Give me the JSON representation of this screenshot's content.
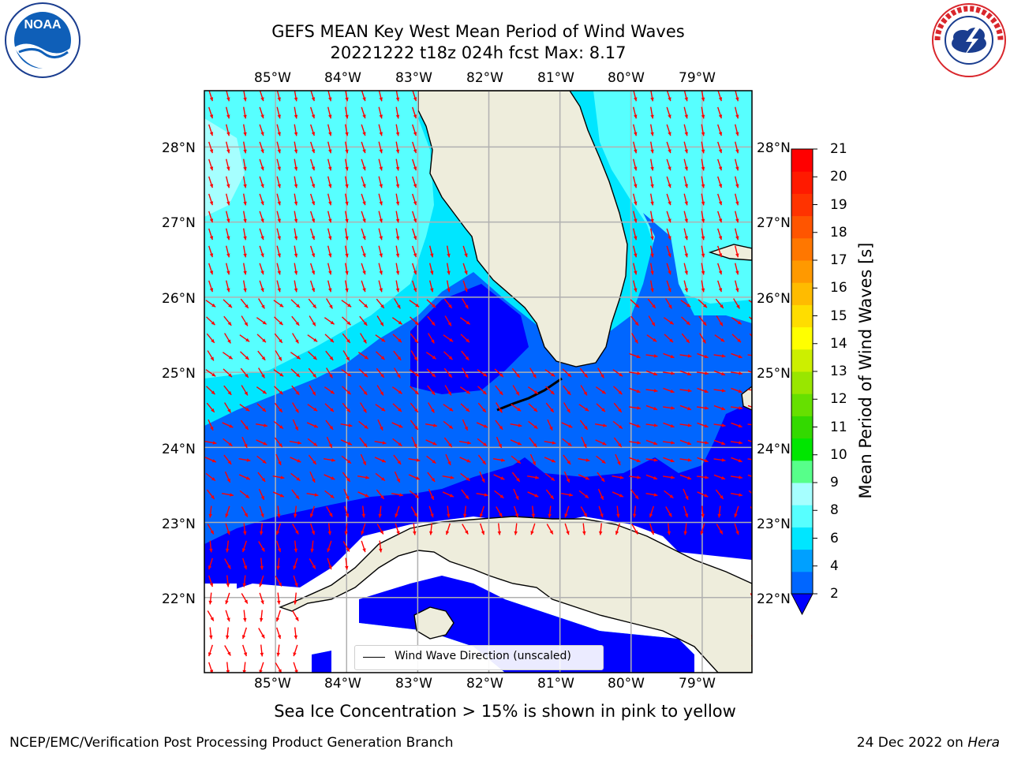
{
  "title": {
    "line1": "GEFS MEAN Key West Mean Period of Wind Waves",
    "line2": "20221222 t18z 024h fcst   Max: 8.17"
  },
  "map": {
    "lon_labels": [
      "85°W",
      "84°W",
      "83°W",
      "82°W",
      "81°W",
      "80°W",
      "79°W"
    ],
    "lat_labels": [
      "28°N",
      "27°N",
      "26°N",
      "25°N",
      "24°N",
      "23°N",
      "22°N"
    ],
    "lon_range": [
      -86.0,
      -78.3
    ],
    "lat_range": [
      21.0,
      28.75
    ],
    "land_color": "#eeeddc",
    "grid_color": "#b0b0b0",
    "arrow_color": "#ff0000",
    "legend_label": "Wind Wave Direction (unscaled)"
  },
  "colorbar": {
    "ticks": [
      "2",
      "4",
      "6",
      "8",
      "9",
      "10",
      "11",
      "12",
      "13",
      "14",
      "15",
      "16",
      "17",
      "18",
      "19",
      "20",
      "21"
    ],
    "label": "Mean Period of Wind Waves [s]",
    "colors": [
      "#0066ff",
      "#00a0ff",
      "#00e6ff",
      "#57ffff",
      "#a6ffff",
      "#57ff8a",
      "#00e600",
      "#33d900",
      "#66e000",
      "#99e600",
      "#ccef00",
      "#ffff00",
      "#ffdd00",
      "#ffbb00",
      "#ff9900",
      "#ff7700",
      "#ff5500",
      "#ff3300",
      "#ff1a00",
      "#ff0000"
    ]
  },
  "sea_ice_note": "Sea Ice Concentration > 15% is shown in pink to yellow",
  "footer": {
    "left": "NCEP/EMC/Verification Post Processing Product Generation Branch",
    "date": "24 Dec 2022 on ",
    "machine": "Hera"
  },
  "logos": {
    "noaa": "NOAA",
    "nws": "NATIONAL WEATHER SERVICE"
  }
}
